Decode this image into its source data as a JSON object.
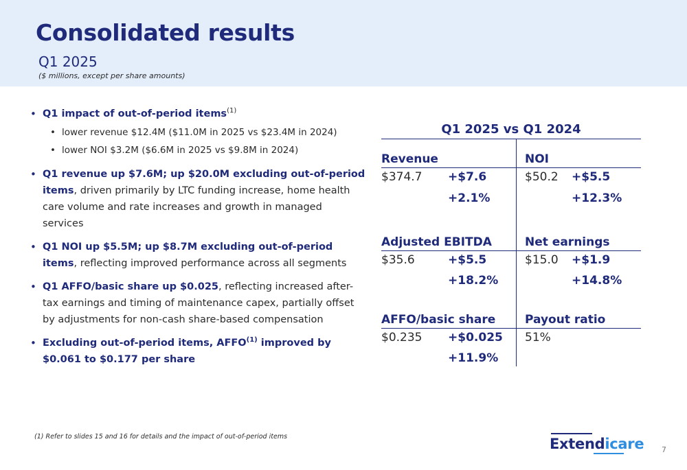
{
  "header": {
    "title": "Consolidated results",
    "subtitle": "Q1 2025",
    "units_note": "($ millions, except per share amounts)"
  },
  "bullets": {
    "b1": {
      "highlight": "Q1 impact of out-of-period items",
      "superscript": "(1)",
      "sub": [
        "lower revenue $12.4M ($11.0M in 2025 vs $23.4M in 2024)",
        "lower NOI $3.2M ($6.6M in 2025 vs $9.8M in 2024)"
      ]
    },
    "b2": {
      "highlight": "Q1 revenue up $7.6M; up $20.0M excluding out-of-period items",
      "rest": ", driven primarily by LTC funding increase, home health care volume and rate increases and growth in managed services"
    },
    "b3": {
      "highlight": "Q1 NOI up $5.5M; up $8.7M excluding out-of-period items",
      "rest": ", reflecting improved performance across all segments"
    },
    "b4": {
      "highlight": "Q1 AFFO/basic share up $0.025",
      "rest": ", reflecting increased after-tax earnings and timing of maintenance capex, partially offset by adjustments for non-cash share-based compensation"
    },
    "b5": {
      "highlight_a": "Excluding out-of-period items, AFFO",
      "superscript": "(1)",
      "highlight_b": " improved by $0.061 to $0.177 per share"
    }
  },
  "comparison": {
    "title": "Q1 2025 vs Q1 2024",
    "metrics": [
      {
        "label": "Revenue",
        "value": "$374.7",
        "change": "+$7.6",
        "change_pct": "+2.1%"
      },
      {
        "label": "NOI",
        "value": "$50.2",
        "change": "+$5.5",
        "change_pct": "+12.3%"
      },
      {
        "label": "Adjusted EBITDA",
        "value": "$35.6",
        "change": "+$5.5",
        "change_pct": "+18.2%"
      },
      {
        "label": "Net earnings",
        "value": "$15.0",
        "change": "+$1.9",
        "change_pct": "+14.8%"
      },
      {
        "label": "AFFO/basic share",
        "value": "$0.235",
        "change": "+$0.025",
        "change_pct": "+11.9%"
      },
      {
        "label": "Payout ratio",
        "value": "51%",
        "change": "",
        "change_pct": ""
      }
    ]
  },
  "footer": {
    "footnote": "(1)  Refer to slides 15 and 16 for details and the impact of out-of-period items",
    "logo_part1": "Extend",
    "logo_part2": "icare",
    "page_number": "7"
  },
  "colors": {
    "navy": "#1f2a7a",
    "header_bg": "#e4eefb",
    "logo_blue": "#2f8ee0"
  }
}
